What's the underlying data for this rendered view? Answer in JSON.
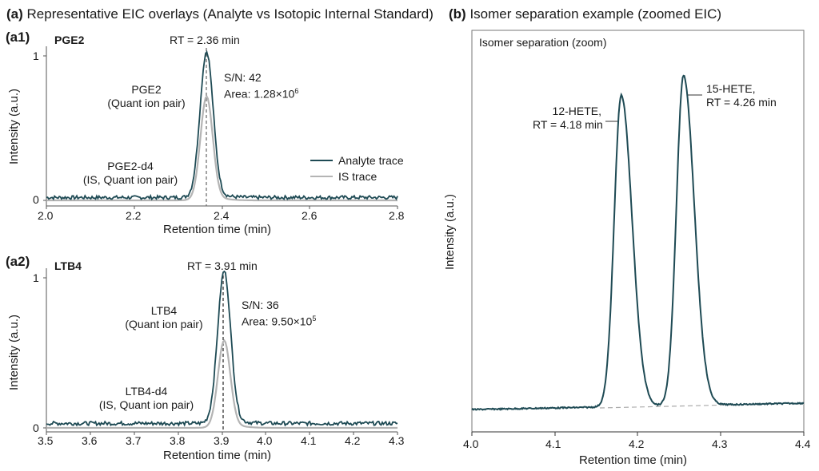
{
  "panel_a": {
    "letter": "(a)",
    "title": "Representative EIC overlays (Analyte vs Isotopic Internal Standard)"
  },
  "panel_b": {
    "letter": "(b)",
    "title": "Isomer separation example (zoomed EIC)"
  },
  "legend": {
    "analyte": "Analyte trace",
    "is": "IS trace"
  },
  "colors": {
    "analyte": "#1e4a54",
    "is": "#b4b4b4",
    "axis": "#555555",
    "rt_line": "#555555",
    "baseline_dash": "#aaaaaa"
  },
  "a1": {
    "label": "(a1)",
    "compound": "PGE2",
    "rt_label": "RT = 2.36 min",
    "analyte_label_1": "PGE2",
    "analyte_label_2": "(Quant ion pair)",
    "is_label_1": "PGE2-d4",
    "is_label_2": "(IS, Quant ion pair)",
    "sn": "S/N: 42",
    "area_prefix": "Area: 1.28×10",
    "area_exp": "6",
    "ylabel": "Intensity (a.u.)",
    "xlabel": "Retention time (min)",
    "yticks": [
      "0",
      "1"
    ],
    "xticks": [
      "2.0",
      "2.2",
      "2.4",
      "2.6",
      "2.8"
    ]
  },
  "a2": {
    "label": "(a2)",
    "compound": "LTB4",
    "rt_label": "RT = 3.91 min",
    "analyte_label_1": "LTB4",
    "analyte_label_2": "(Quant ion pair)",
    "is_label_1": "LTB4-d4",
    "is_label_2": "(IS, Quant ion pair)",
    "sn": "S/N: 36",
    "area_prefix": "Area: 9.50×10",
    "area_exp": "5",
    "ylabel": "Intensity (a.u.)",
    "xlabel": "Retention time (min)",
    "yticks": [
      "0",
      "1"
    ],
    "xticks": [
      "3.5",
      "3.6",
      "3.7",
      "3.8",
      "3.9",
      "4.0",
      "4.1",
      "4.2",
      "4.3"
    ]
  },
  "b": {
    "inner_title": "Isomer separation (zoom)",
    "peak1_label_1": "12-HETE,",
    "peak1_label_2": "RT = 4.18 min",
    "peak2_label_1": "15-HETE,",
    "peak2_label_2": "RT = 4.26 min",
    "ylabel": "Intensity (a.u.)",
    "xlabel": "Retention time (min)",
    "xticks": [
      "4.0",
      "4.1",
      "4.2",
      "4.3",
      "4.4"
    ]
  },
  "chart_data": [
    {
      "type": "line",
      "title": "(a1) PGE2",
      "xlabel": "Retention time (min)",
      "ylabel": "Intensity (a.u.)",
      "xlim": [
        2.0,
        2.8
      ],
      "ylim": [
        0,
        1
      ],
      "grid": false,
      "legend": [
        "Analyte trace",
        "IS trace"
      ],
      "legend_position": "right-middle",
      "series": [
        {
          "name": "Analyte trace",
          "peak_rt": 2.365,
          "peak_height": 1.0,
          "baseline": 0.02,
          "peak_width_fwhm": 0.035
        },
        {
          "name": "IS trace",
          "peak_rt": 2.365,
          "peak_height": 0.71,
          "baseline": 0.0,
          "peak_width_fwhm": 0.033
        }
      ],
      "annotations": [
        "RT = 2.36 min",
        "S/N: 42",
        "Area: 1.28×10^6",
        "PGE2 (Quant ion pair)",
        "PGE2-d4 (IS, Quant ion pair)"
      ]
    },
    {
      "type": "line",
      "title": "(a2) LTB4",
      "xlabel": "Retention time (min)",
      "ylabel": "Intensity (a.u.)",
      "xlim": [
        3.5,
        4.3
      ],
      "ylim": [
        0,
        1
      ],
      "grid": false,
      "series": [
        {
          "name": "Analyte trace",
          "peak_rt": 3.905,
          "peak_height": 1.0,
          "baseline": 0.03,
          "peak_width_fwhm": 0.035
        },
        {
          "name": "IS trace",
          "peak_rt": 3.905,
          "peak_height": 0.57,
          "baseline": 0.0,
          "peak_width_fwhm": 0.033
        }
      ],
      "annotations": [
        "RT = 3.91 min",
        "S/N: 36",
        "Area: 9.50×10^5",
        "LTB4 (Quant ion pair)",
        "LTB4-d4 (IS, Quant ion pair)"
      ]
    },
    {
      "type": "line",
      "title": "Isomer separation (zoom)",
      "xlabel": "Retention time (min)",
      "ylabel": "Intensity (a.u.)",
      "xlim": [
        4.0,
        4.4
      ],
      "grid": false,
      "series": [
        {
          "name": "EIC",
          "peaks": [
            {
              "label": "12-HETE",
              "rt": 4.18,
              "relative_height": 0.83
            },
            {
              "label": "15-HETE",
              "rt": 4.255,
              "relative_height": 0.88
            }
          ],
          "valley_rt": 4.225,
          "valley_relative_height": 0.03
        }
      ],
      "annotations": [
        "12-HETE, RT = 4.18 min",
        "15-HETE, RT = 4.26 min",
        "dashed baseline"
      ]
    }
  ]
}
